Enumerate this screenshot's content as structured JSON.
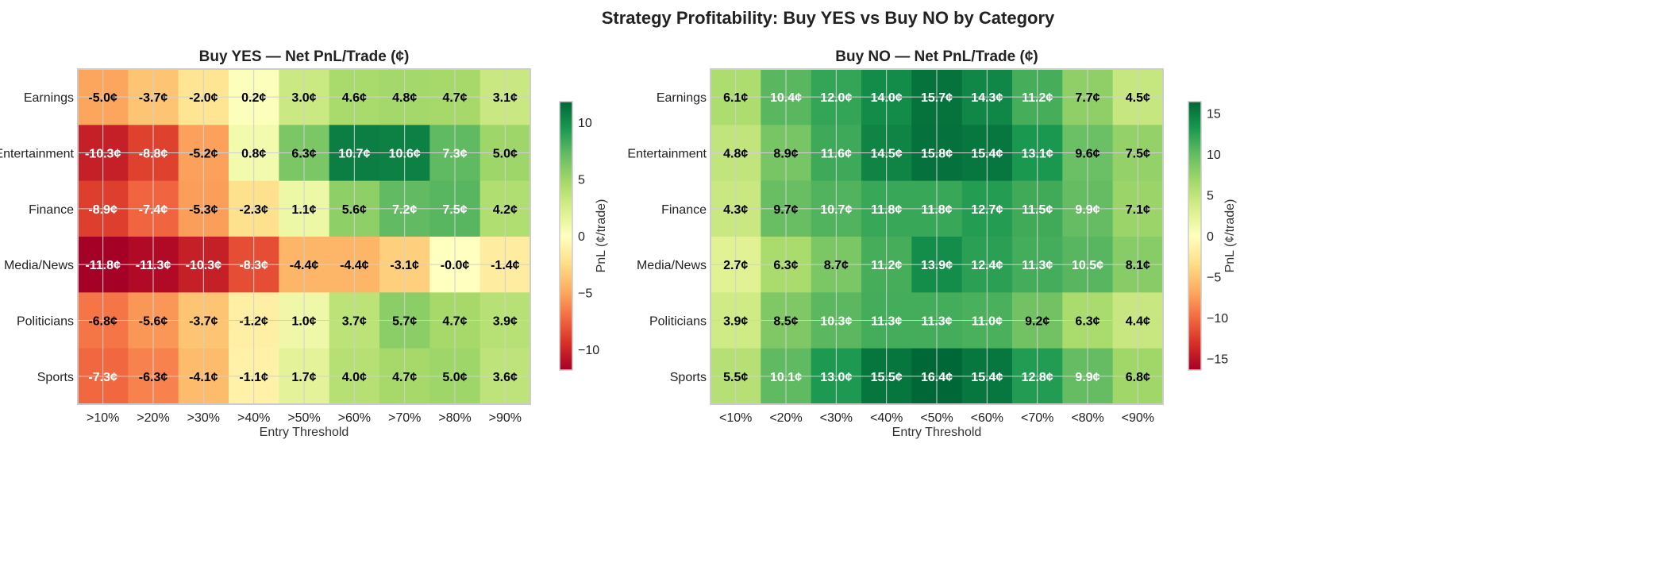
{
  "chart_data": {
    "title": "Strategy Profitability: Buy YES vs Buy NO by Category",
    "panels": [
      {
        "type": "heatmap",
        "title": "Buy YES — Net PnL/Trade (¢)",
        "xlabel": "Entry Threshold",
        "ylabel": "",
        "x_categories": [
          ">10%",
          ">20%",
          ">30%",
          ">40%",
          ">50%",
          ">60%",
          ">70%",
          ">80%",
          ">90%"
        ],
        "y_categories": [
          "Earnings",
          "Entertainment",
          "Finance",
          "Media/News",
          "Politicians",
          "Sports"
        ],
        "values": [
          [
            -5.0,
            -3.7,
            -2.0,
            0.2,
            3.0,
            4.6,
            4.8,
            4.7,
            3.1
          ],
          [
            -10.3,
            -8.8,
            -5.2,
            0.8,
            6.3,
            10.7,
            10.6,
            7.3,
            5.0
          ],
          [
            -8.9,
            -7.4,
            -5.3,
            -2.3,
            1.1,
            5.6,
            7.2,
            7.5,
            4.2
          ],
          [
            -11.8,
            -11.3,
            -10.3,
            -8.3,
            -4.4,
            -4.4,
            -3.1,
            -0.0,
            -1.4
          ],
          [
            -6.8,
            -5.6,
            -3.7,
            -1.2,
            1.0,
            3.7,
            5.7,
            4.7,
            3.9
          ],
          [
            -7.3,
            -6.3,
            -4.1,
            -1.1,
            1.7,
            4.0,
            4.7,
            5.0,
            3.6
          ]
        ],
        "value_suffix": "¢",
        "colormap": "RdYlGn",
        "vrange": [
          -11.8,
          11.8
        ],
        "colorbar": {
          "label": "PnL (¢/trade)",
          "ticks": [
            -10,
            -5,
            0,
            5,
            10
          ]
        }
      },
      {
        "type": "heatmap",
        "title": "Buy NO — Net PnL/Trade (¢)",
        "xlabel": "Entry Threshold",
        "ylabel": "",
        "x_categories": [
          "<10%",
          "<20%",
          "<30%",
          "<40%",
          "<50%",
          "<60%",
          "<70%",
          "<80%",
          "<90%"
        ],
        "y_categories": [
          "Earnings",
          "Entertainment",
          "Finance",
          "Media/News",
          "Politicians",
          "Sports"
        ],
        "values": [
          [
            6.1,
            10.4,
            12.0,
            14.0,
            15.7,
            14.3,
            11.2,
            7.7,
            4.5
          ],
          [
            4.8,
            8.9,
            11.6,
            14.5,
            15.8,
            15.4,
            13.1,
            9.6,
            7.5
          ],
          [
            4.3,
            9.7,
            10.7,
            11.8,
            11.8,
            12.7,
            11.5,
            9.9,
            7.1
          ],
          [
            2.7,
            6.3,
            8.7,
            11.2,
            13.9,
            12.4,
            11.3,
            10.5,
            8.1
          ],
          [
            3.9,
            8.5,
            10.3,
            11.3,
            11.3,
            11.0,
            9.2,
            6.3,
            4.4
          ],
          [
            5.5,
            10.1,
            13.0,
            15.5,
            16.4,
            15.4,
            12.8,
            9.9,
            6.8
          ]
        ],
        "value_suffix": "¢",
        "colormap": "RdYlGn",
        "vrange": [
          -16.4,
          16.4
        ],
        "colorbar": {
          "label": "PnL (¢/trade)",
          "ticks": [
            -15,
            -10,
            -5,
            0,
            5,
            10,
            15
          ]
        }
      }
    ]
  }
}
